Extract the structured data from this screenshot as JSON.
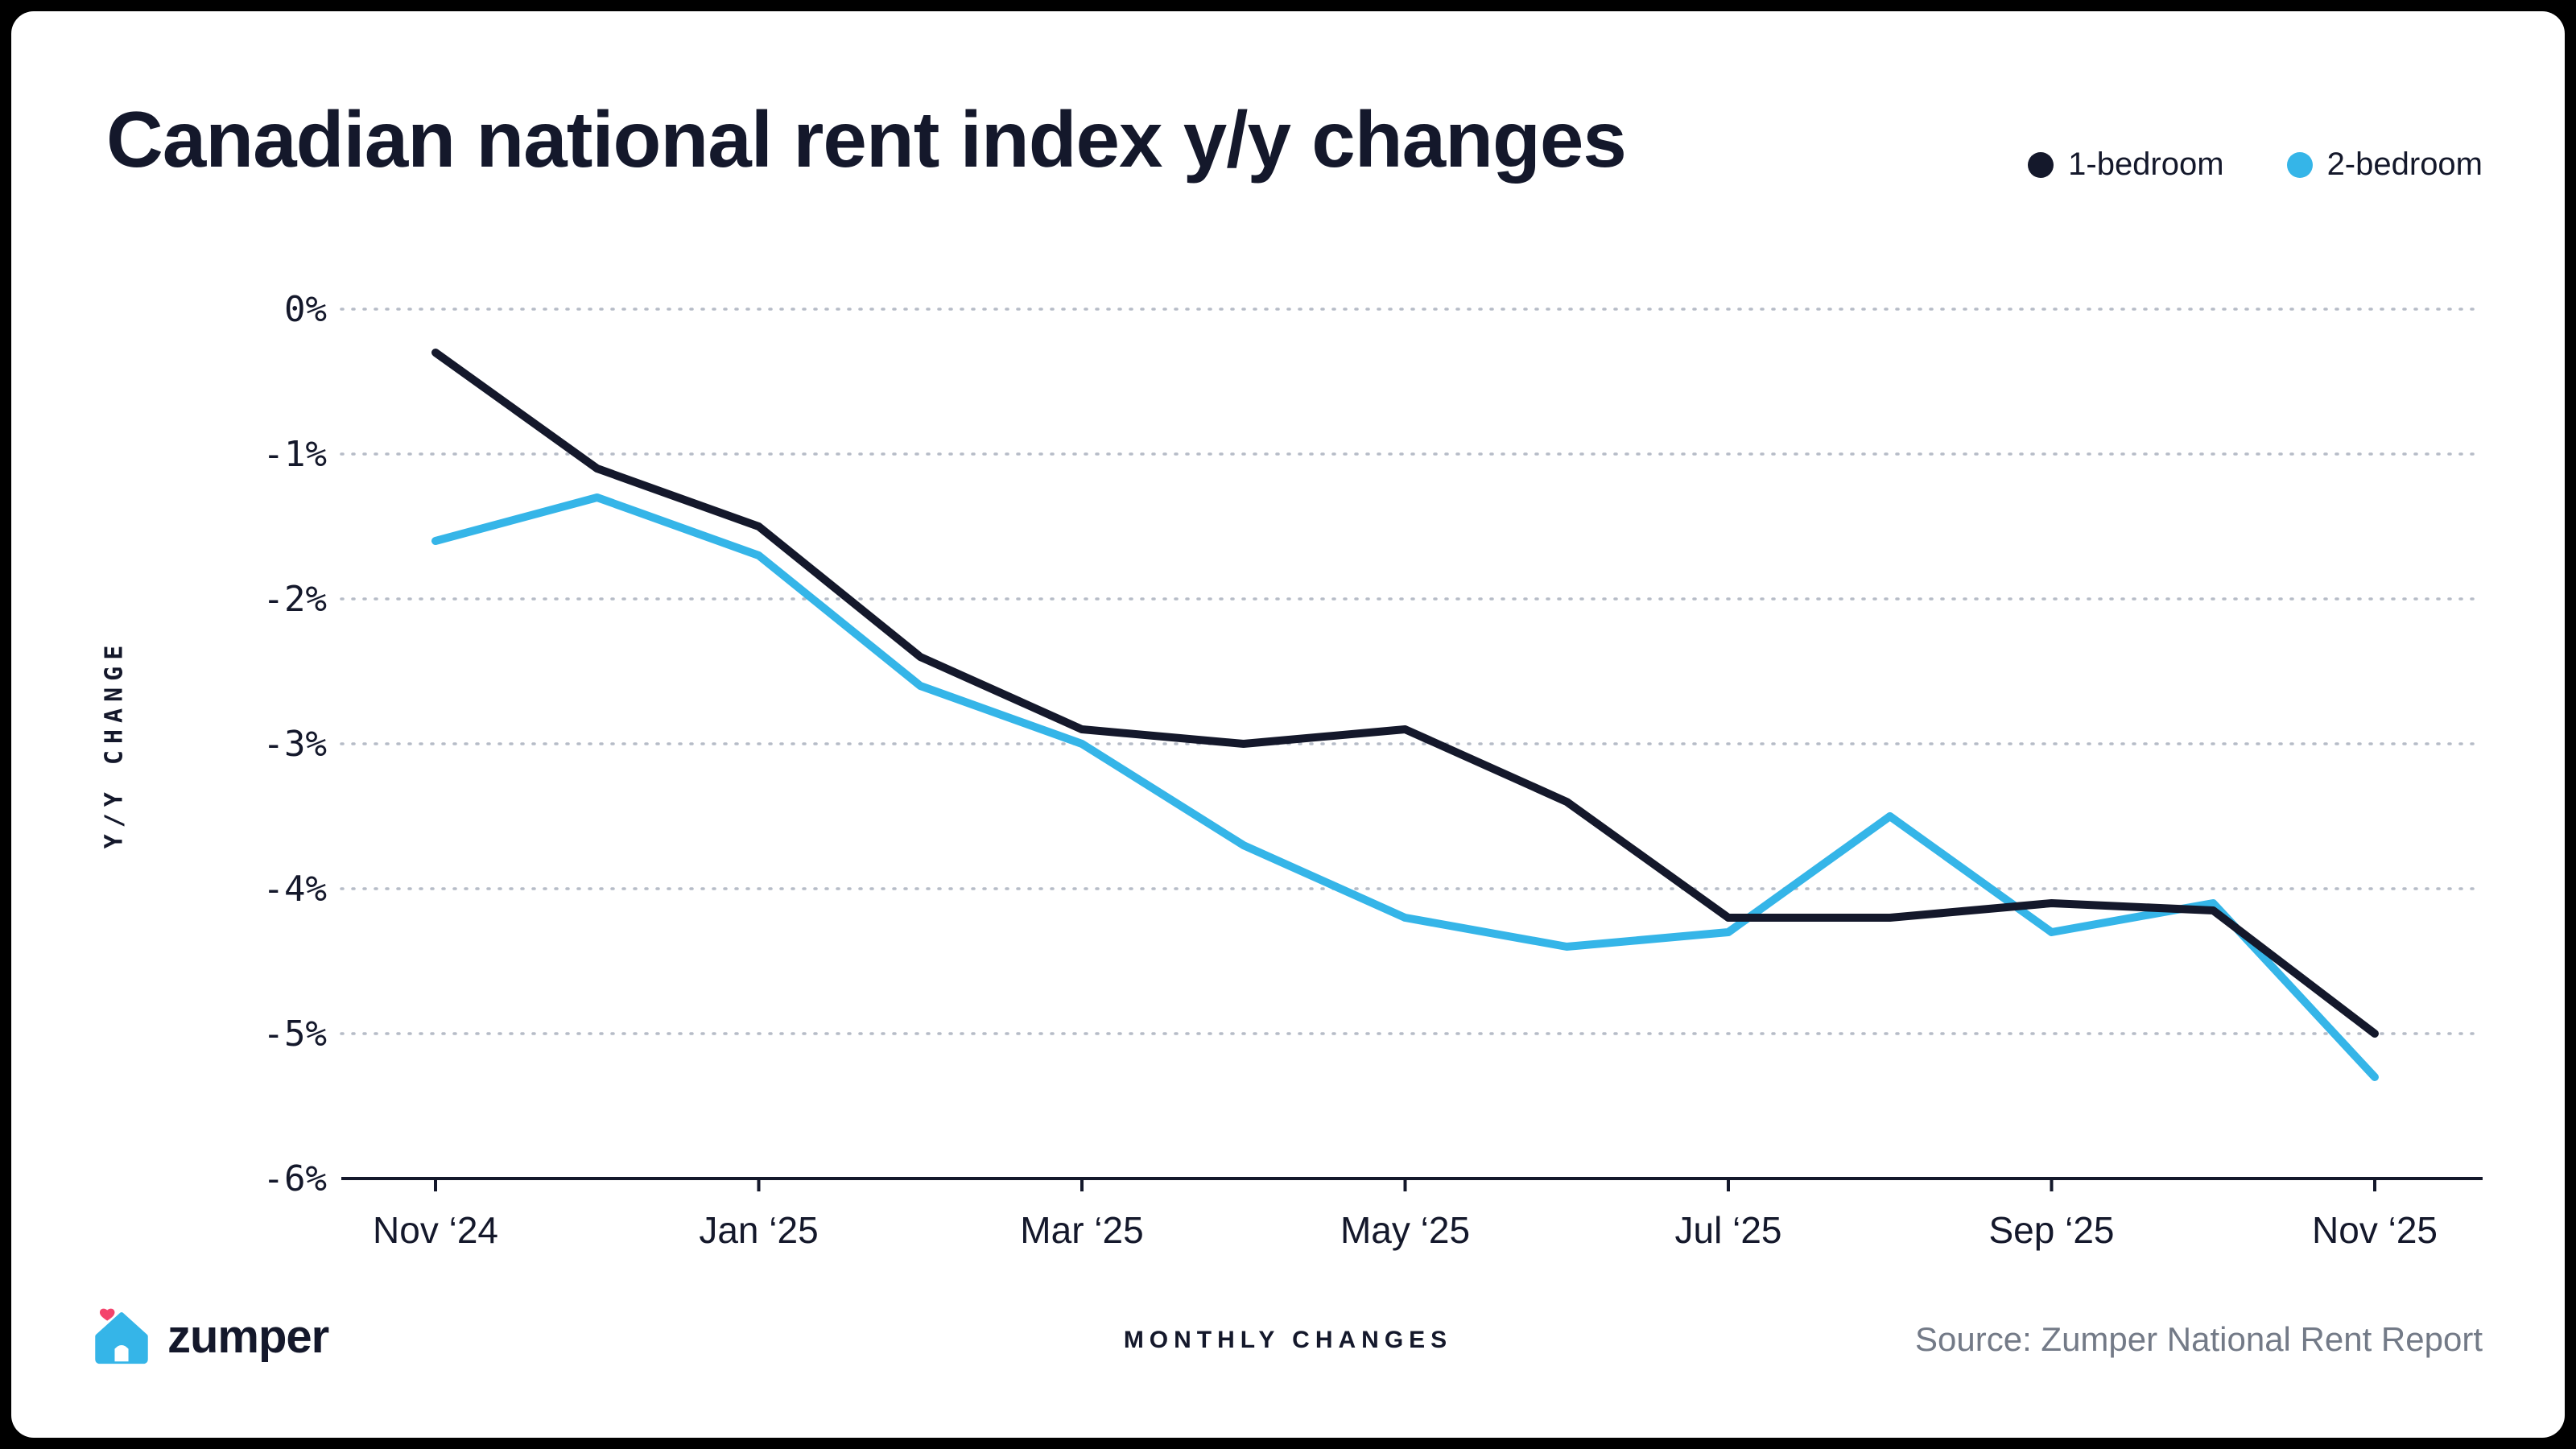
{
  "frame": {
    "background": "#000000",
    "card_background": "#ffffff"
  },
  "header": {
    "title": "Canadian national rent index y/y changes",
    "legend": [
      {
        "label": "1-bedroom",
        "color": "#14182b"
      },
      {
        "label": "2-bedroom",
        "color": "#35b5e8"
      }
    ]
  },
  "chart_data": {
    "type": "line",
    "x": [
      "Nov ‘24",
      "Dec ‘24",
      "Jan ‘25",
      "Feb ‘25",
      "Mar ‘25",
      "Apr ‘25",
      "May ‘25",
      "Jun ‘25",
      "Jul ‘25",
      "Aug ‘25",
      "Sep ‘25",
      "Oct ‘25",
      "Nov ‘25"
    ],
    "x_tick_labels": [
      "Nov ‘24",
      "Jan ‘25",
      "Mar ‘25",
      "May ‘25",
      "Jul ‘25",
      "Sep ‘25",
      "Nov ‘25"
    ],
    "x_tick_indices": [
      0,
      2,
      4,
      6,
      8,
      10,
      12
    ],
    "series": [
      {
        "name": "1-bedroom",
        "color": "#14182b",
        "values": [
          -0.3,
          -1.1,
          -1.5,
          -2.4,
          -2.9,
          -3.0,
          -2.9,
          -3.4,
          -4.2,
          -4.2,
          -4.1,
          -4.15,
          -5.0
        ]
      },
      {
        "name": "2-bedroom",
        "color": "#35b5e8",
        "values": [
          -1.6,
          -1.3,
          -1.7,
          -2.6,
          -3.0,
          -3.7,
          -4.2,
          -4.4,
          -4.3,
          -3.5,
          -4.3,
          -4.1,
          -5.3
        ]
      }
    ],
    "ylabel": "Y/Y CHANGE",
    "ylim": [
      -6,
      0
    ],
    "y_ticks": [
      0,
      -1,
      -2,
      -3,
      -4,
      -5,
      -6
    ],
    "y_tick_format": "percent",
    "grid": "dotted horizontal",
    "legend_position": "top-right"
  },
  "footer": {
    "brand": "zumper",
    "center_label": "MONTHLY CHANGES",
    "source": "Source: Zumper National Rent Report"
  }
}
